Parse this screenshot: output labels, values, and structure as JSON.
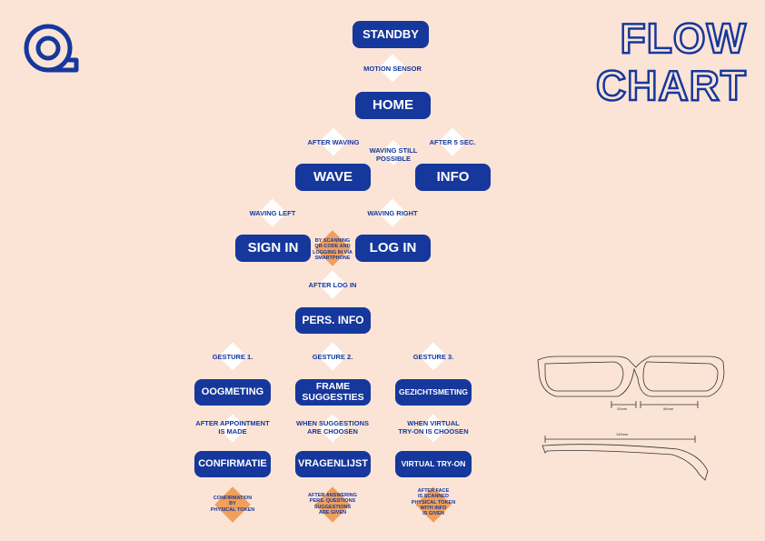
{
  "title": {
    "line1": "FLOW",
    "line2": "CHART"
  },
  "colors": {
    "primary": "#16379c",
    "background": "#fbe4d6",
    "diamond_white": "#ffffff",
    "diamond_orange": "#f0a05a"
  },
  "nodes": {
    "standby": "STANDBY",
    "home": "HOME",
    "wave": "WAVE",
    "info": "INFO",
    "sign_in": "SIGN IN",
    "log_in": "LOG IN",
    "pers_info": "PERS. INFO",
    "oogmeting": "OOGMETING",
    "frame_suggesties": "FRAME\nSUGGESTIES",
    "gezichtsmeting": "GEZICHTSMETING",
    "confirmatie": "CONFIRMATIE",
    "vragenlijst": "VRAGENLIJST",
    "virtual_tryon": "VIRTUAL TRY-ON"
  },
  "labels": {
    "motion_sensor": "MOTION SENSOR",
    "after_waving": "AFTER WAVING",
    "waving_still_possible": "WAVING STILL\nPOSSIBLE",
    "after_5_sec": "AFTER 5 SEC.",
    "waving_left": "WAVING LEFT",
    "waving_right": "WAVING RIGHT",
    "scanning_qr": "BY SCANNING\nQR-CODE AND\nLOGGING IN VIA\nSMARTPHONE",
    "after_log_in": "AFTER LOG IN",
    "gesture_1": "GESTURE 1.",
    "gesture_2": "GESTURE 2.",
    "gesture_3": "GESTURE 3.",
    "after_appointment": "AFTER APPOINTMENT\nIS MADE",
    "when_suggestions": "WHEN SUGGESTIONS\nARE CHOOSEN",
    "when_virtual": "WHEN VIRTUAL\nTRY-ON IS CHOOSEN",
    "confirmation_token": "CONFIRMATION\nBY\nPHYSICAL TOKEN",
    "after_answering": "AFTER ANSWERING\nPERS. QUESTIONS\nSUGGESTIONS\nARE GIVEN",
    "after_face": "AFTER FACE\nIS SCANNED\nPHYSICAL TOKEN\nWITH INFO\nIS GIVEN"
  },
  "glasses_dimensions": {
    "bridge": "20mm",
    "lens": "56mm",
    "temple": "140mm"
  }
}
